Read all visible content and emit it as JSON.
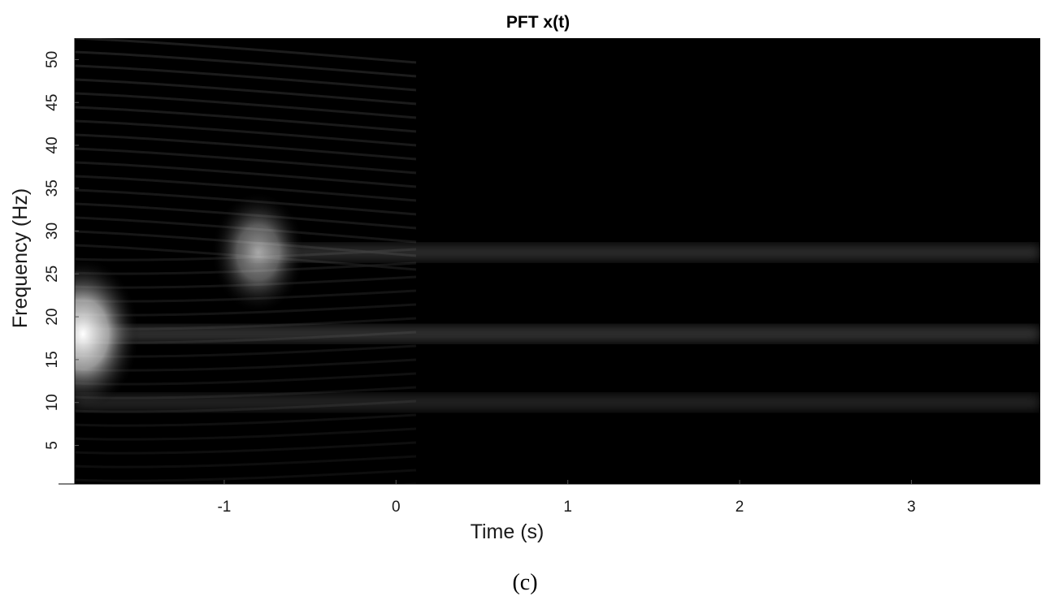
{
  "chart_data": {
    "type": "heatmap",
    "title": "PFT x(t)",
    "xlabel": "Time (s)",
    "ylabel": "Frequency (Hz)",
    "xlim": [
      -1.87,
      3.75
    ],
    "ylim": [
      0.5,
      52.5
    ],
    "x_ticks": [
      -1,
      0,
      1,
      2,
      3
    ],
    "y_ticks": [
      5,
      10,
      15,
      20,
      25,
      30,
      35,
      40,
      45,
      50
    ],
    "colormap": "gray",
    "background_color": "#000000",
    "grid": false,
    "legend": "none",
    "spectral_lines": [
      {
        "frequency": 18,
        "t_start": -1.87,
        "t_end": 3.75,
        "relative_intensity": 1.0
      },
      {
        "frequency": 27.5,
        "t_start": -0.85,
        "t_end": 3.75,
        "relative_intensity": 0.9
      },
      {
        "frequency": 10,
        "t_start": -1.87,
        "t_end": 3.75,
        "relative_intensity": 0.7
      }
    ],
    "transient_bursts": [
      {
        "time": -1.87,
        "frequency": 18,
        "relative_intensity": 1.0
      },
      {
        "time": -0.85,
        "frequency": 27.5,
        "relative_intensity": 0.6
      }
    ]
  },
  "panel_label": "(c)"
}
